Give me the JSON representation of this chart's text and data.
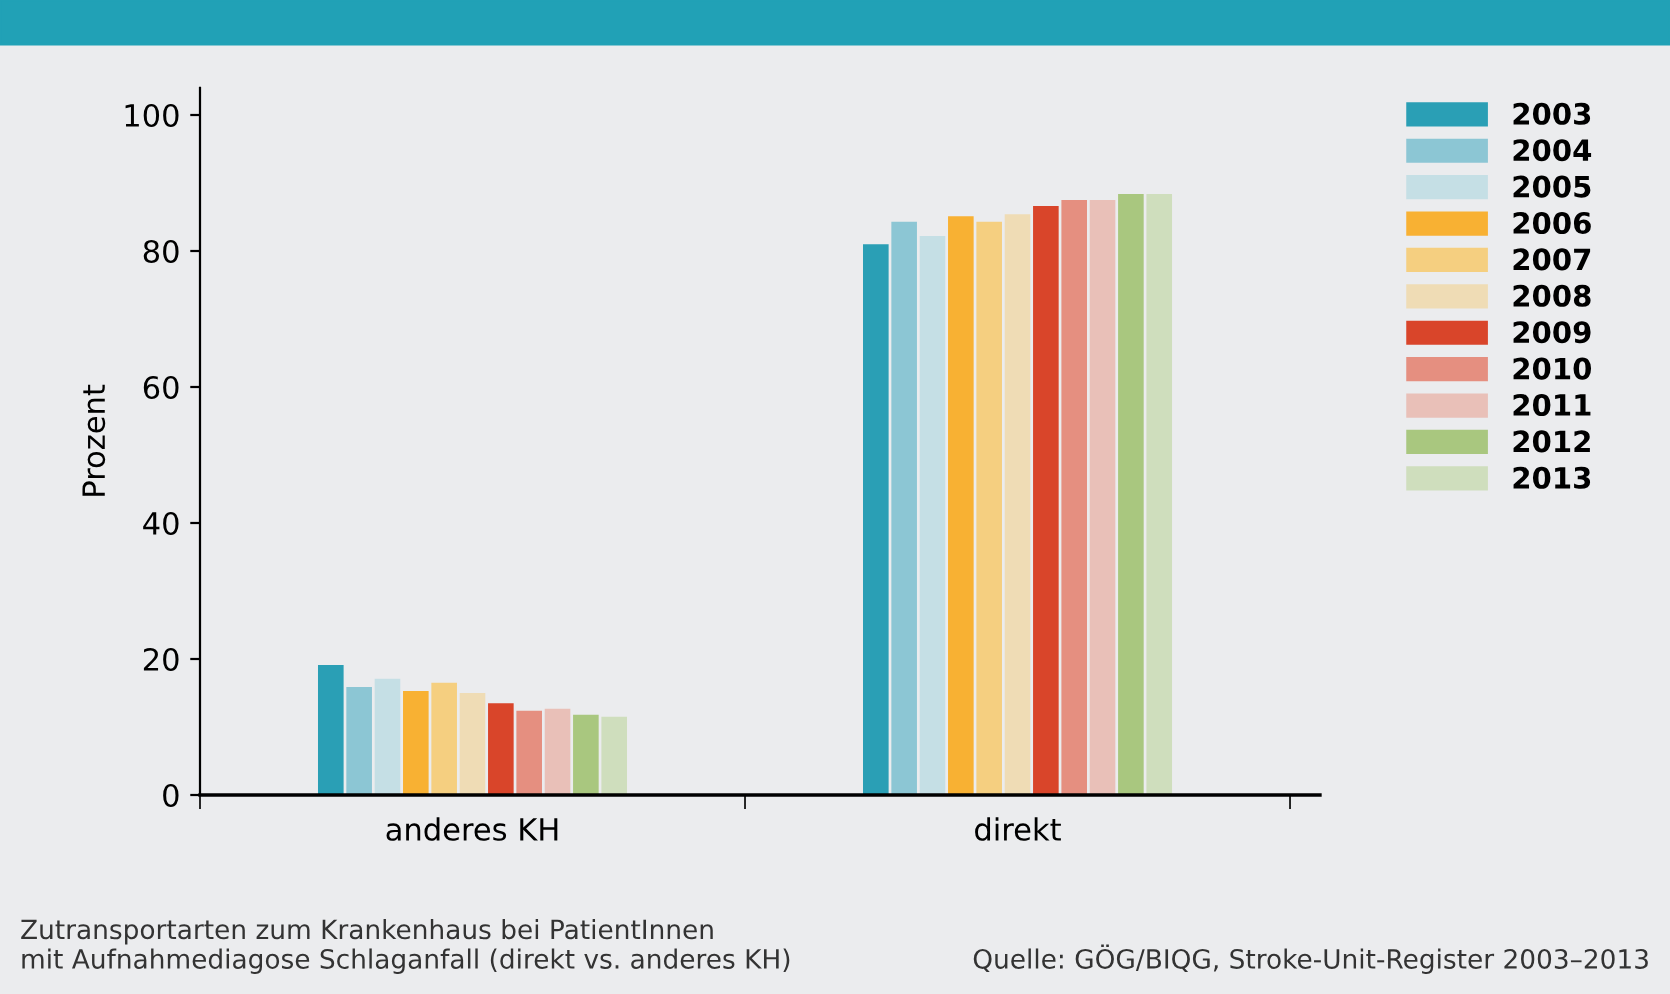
{
  "chart_data": {
    "type": "bar",
    "ylabel": "Prozent",
    "categories": [
      "anderes KH",
      "direkt"
    ],
    "series": [
      {
        "name": "2003",
        "color": "#2a9fb5",
        "values": [
          19.1,
          81.0
        ]
      },
      {
        "name": "2004",
        "color": "#8cc6d4",
        "values": [
          15.9,
          84.3
        ]
      },
      {
        "name": "2005",
        "color": "#c5dfe5",
        "values": [
          17.1,
          82.2
        ]
      },
      {
        "name": "2006",
        "color": "#f8b133",
        "values": [
          15.3,
          85.1
        ]
      },
      {
        "name": "2007",
        "color": "#f5cf80",
        "values": [
          16.5,
          84.3
        ]
      },
      {
        "name": "2008",
        "color": "#efdcb5",
        "values": [
          15.0,
          85.4
        ]
      },
      {
        "name": "2009",
        "color": "#d9452a",
        "values": [
          13.5,
          86.6
        ]
      },
      {
        "name": "2010",
        "color": "#e58f80",
        "values": [
          12.4,
          87.5
        ]
      },
      {
        "name": "2011",
        "color": "#e9c0b8",
        "values": [
          12.7,
          87.5
        ]
      },
      {
        "name": "2012",
        "color": "#a9c77f",
        "values": [
          11.8,
          88.4
        ]
      },
      {
        "name": "2013",
        "color": "#cfdebd",
        "values": [
          11.5,
          88.4
        ]
      }
    ],
    "ylim": [
      0,
      104
    ],
    "yticks": [
      0,
      20,
      40,
      60,
      80,
      100
    ],
    "grid": false,
    "legend": "top right",
    "annotations": [
      "Zutransportarten zum Krankenhaus bei PatientInnen\nmit Aufnahmediagose Schlaganfall (direkt vs. anderes KH)",
      "Quelle: GÖG/BIQG, Stroke-Unit-Register 2003–2013"
    ]
  }
}
